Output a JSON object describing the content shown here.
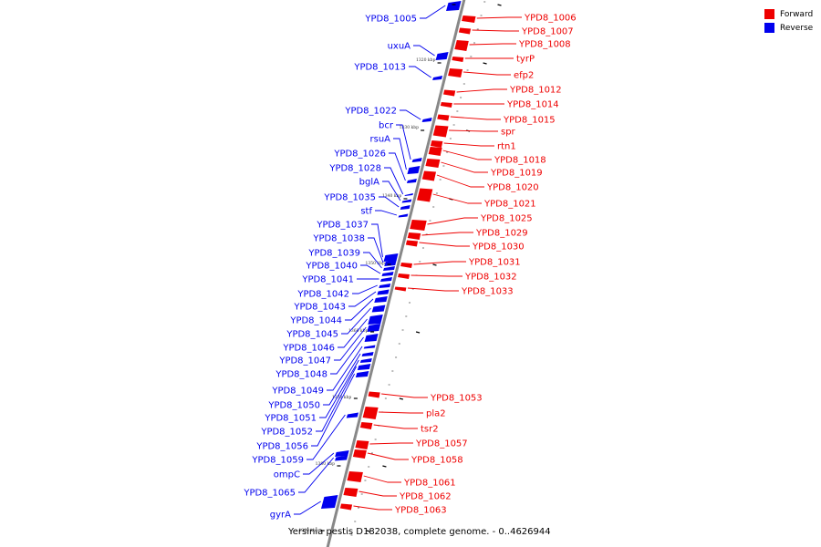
{
  "colors": {
    "forward": "#ee0000",
    "reverse": "#0000ee",
    "axis": "#888888",
    "tick": "#000000"
  },
  "legend": [
    {
      "label": "Forward",
      "color": "#ee0000"
    },
    {
      "label": "Reverse",
      "color": "#0000ee"
    }
  ],
  "caption": "Yersinia pestis D182038, complete genome. - 0..4626944",
  "kbp_labels": [
    "1320 kbp",
    "1330 kbp",
    "1340 kbp",
    "1350 kbp",
    "1360 kbp",
    "1370 kbp",
    "1380 kbp",
    "1390 kbp"
  ],
  "forward_genes": [
    "YPD8_1006",
    "YPD8_1007",
    "YPD8_1008",
    "tyrP",
    "efp2",
    "YPD8_1012",
    "YPD8_1014",
    "YPD8_1015",
    "spr",
    "rtn1",
    "YPD8_1018",
    "YPD8_1019",
    "YPD8_1020",
    "YPD8_1021",
    "YPD8_1025",
    "YPD8_1029",
    "YPD8_1030",
    "YPD8_1031",
    "YPD8_1032",
    "YPD8_1033",
    "YPD8_1053",
    "pla2",
    "tsr2",
    "YPD8_1057",
    "YPD8_1058",
    "YPD8_1061",
    "YPD8_1062",
    "YPD8_1063"
  ],
  "reverse_genes": [
    "YPD8_1005",
    "uxuA",
    "YPD8_1013",
    "YPD8_1022",
    "bcr",
    "rsuA",
    "YPD8_1026",
    "YPD8_1028",
    "bglA",
    "YPD8_1035",
    "stf",
    "YPD8_1037",
    "YPD8_1038",
    "YPD8_1039",
    "YPD8_1040",
    "YPD8_1041",
    "YPD8_1042",
    "YPD8_1043",
    "YPD8_1044",
    "YPD8_1045",
    "YPD8_1046",
    "YPD8_1047",
    "YPD8_1048",
    "YPD8_1049",
    "YPD8_1050",
    "YPD8_1051",
    "YPD8_1052",
    "YPD8_1056",
    "YPD8_1059",
    "ompC",
    "YPD8_1065",
    "gyrA"
  ]
}
